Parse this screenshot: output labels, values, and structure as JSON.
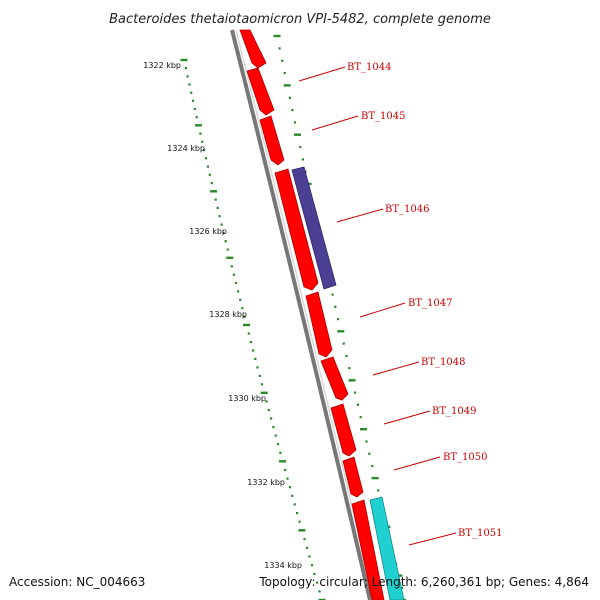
{
  "title": "Bacteroides thetaiotaomicron VPI-5482, complete genome",
  "accession_text": "Accession: NC_004663",
  "summary_text": "Topology: circular; Length: 6,260,361 bp; Genes: 4,864",
  "colors": {
    "backbone": "#8a8a8a",
    "gene_forward": "#ff0000",
    "gene_purple": "#4b3f94",
    "gene_cyan": "#20d0d0",
    "ruler": "#2a8a2a",
    "label": "#cc0000"
  },
  "scale_labels": [
    "1322 kbp",
    "1324 kbp",
    "1326 kbp",
    "1328 kbp",
    "1330 kbp",
    "1332 kbp",
    "1334 kbp"
  ],
  "genes": [
    {
      "label": "BT_1044",
      "color": "#ff0000"
    },
    {
      "label": "BT_1045",
      "color": "#ff0000"
    },
    {
      "label": "BT_1046",
      "color": "#4b3f94"
    },
    {
      "label": "BT_1047",
      "color": "#ff0000"
    },
    {
      "label": "BT_1048",
      "color": "#ff0000"
    },
    {
      "label": "BT_1049",
      "color": "#ff0000"
    },
    {
      "label": "BT_1050",
      "color": "#ff0000"
    },
    {
      "label": "BT_1051",
      "color": "#20d0d0"
    }
  ]
}
